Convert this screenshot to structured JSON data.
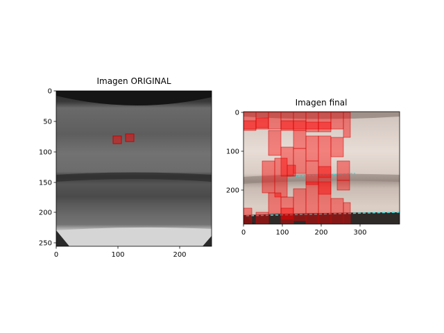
{
  "figure": {
    "panels": [
      {
        "title": "Imagen ORIGINAL",
        "x_ticks": [
          "0",
          "100",
          "200"
        ],
        "y_ticks": [
          "0",
          "50",
          "100",
          "150",
          "200",
          "250"
        ]
      },
      {
        "title": "Imagen final",
        "x_ticks": [
          "0",
          "100",
          "200",
          "300"
        ],
        "y_ticks": [
          "0",
          "100",
          "200"
        ]
      }
    ],
    "colors": {
      "overlay": "#ff0000",
      "overlay_edge": "#cc0000",
      "detection_line": "#33dddd"
    }
  }
}
